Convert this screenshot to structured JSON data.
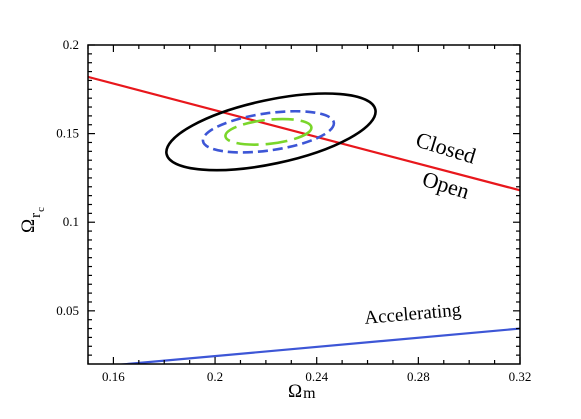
{
  "chart_data": {
    "type": "line",
    "xlabel": "Ω m",
    "xlabel_symbol": "Ω",
    "xlabel_sub": "m",
    "ylabel_symbol": "Ω",
    "ylabel_sub": "r",
    "ylabel_subsub": "c",
    "xlim": [
      0.15,
      0.32
    ],
    "ylim": [
      0.02,
      0.2
    ],
    "x_ticks": [
      0.16,
      0.2,
      0.24,
      0.28,
      0.32
    ],
    "x_tick_labels": [
      "0.16",
      "0.2",
      "0.24",
      "0.28",
      "0.32"
    ],
    "y_ticks": [
      0.05,
      0.1,
      0.15,
      0.2
    ],
    "y_tick_labels": [
      "0.05",
      "0.1",
      "0.15",
      "0.2"
    ],
    "grid": false,
    "series": [
      {
        "name": "Closed / Open",
        "kind": "line",
        "color": "#e8171c",
        "points": [
          [
            0.15,
            0.182
          ],
          [
            0.32,
            0.118
          ]
        ]
      },
      {
        "name": "Accelerating",
        "kind": "line",
        "color": "#3d56d6",
        "points": [
          [
            0.15,
            0.018
          ],
          [
            0.32,
            0.04
          ]
        ]
      },
      {
        "name": "outer contour",
        "kind": "closed-contour",
        "color": "#000000",
        "dash": "solid",
        "center": [
          0.222,
          0.151
        ],
        "semi_axes": [
          0.042,
          0.018
        ],
        "tilt_deg": -12
      },
      {
        "name": "middle contour",
        "kind": "closed-contour",
        "color": "#3d56d6",
        "dash": "dashed",
        "center": [
          0.221,
          0.151
        ],
        "semi_axes": [
          0.026,
          0.0105
        ],
        "tilt_deg": -8
      },
      {
        "name": "inner contour",
        "kind": "closed-contour",
        "color": "#7ad62a",
        "dash": "long-dash",
        "center": [
          0.221,
          0.151
        ],
        "semi_axes": [
          0.017,
          0.0068
        ],
        "tilt_deg": -6
      }
    ],
    "annotations": [
      {
        "text": "Closed",
        "x": 0.29,
        "y": 0.138,
        "rotation_deg": 17
      },
      {
        "text": "Open",
        "x": 0.29,
        "y": 0.117,
        "rotation_deg": 17
      },
      {
        "text": "Accelerating",
        "x": 0.278,
        "y": 0.045,
        "rotation_deg": -5
      }
    ]
  }
}
